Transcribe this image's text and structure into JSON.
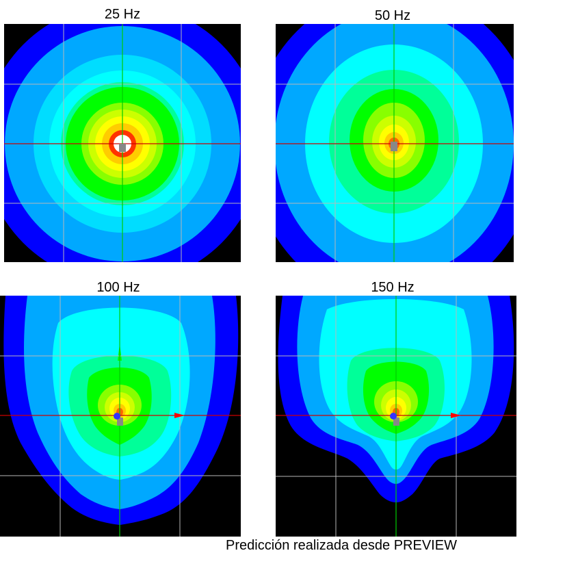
{
  "plots": [
    {
      "title": "25 Hz",
      "pattern": "omni"
    },
    {
      "title": "50 Hz",
      "pattern": "omni-wide"
    },
    {
      "title": "100 Hz",
      "pattern": "cardioid-soft"
    },
    {
      "title": "150 Hz",
      "pattern": "cardioid-strong"
    }
  ],
  "caption": "Predicción realizada desde PREVIEW",
  "colors": {
    "background": "#000000",
    "levels": [
      "#0000ff",
      "#00a8ff",
      "#00ddff",
      "#00ffff",
      "#00ff99",
      "#00ff00",
      "#88ff00",
      "#ccff00",
      "#ffff00",
      "#ffcc00",
      "#ff6600",
      "#ff0000",
      "#ffffff"
    ],
    "grid": "#b8b8b8",
    "axis_horizontal": "#ff0000",
    "axis_vertical": "#00cc00",
    "source": "#888888",
    "marker": "#3333ff"
  }
}
